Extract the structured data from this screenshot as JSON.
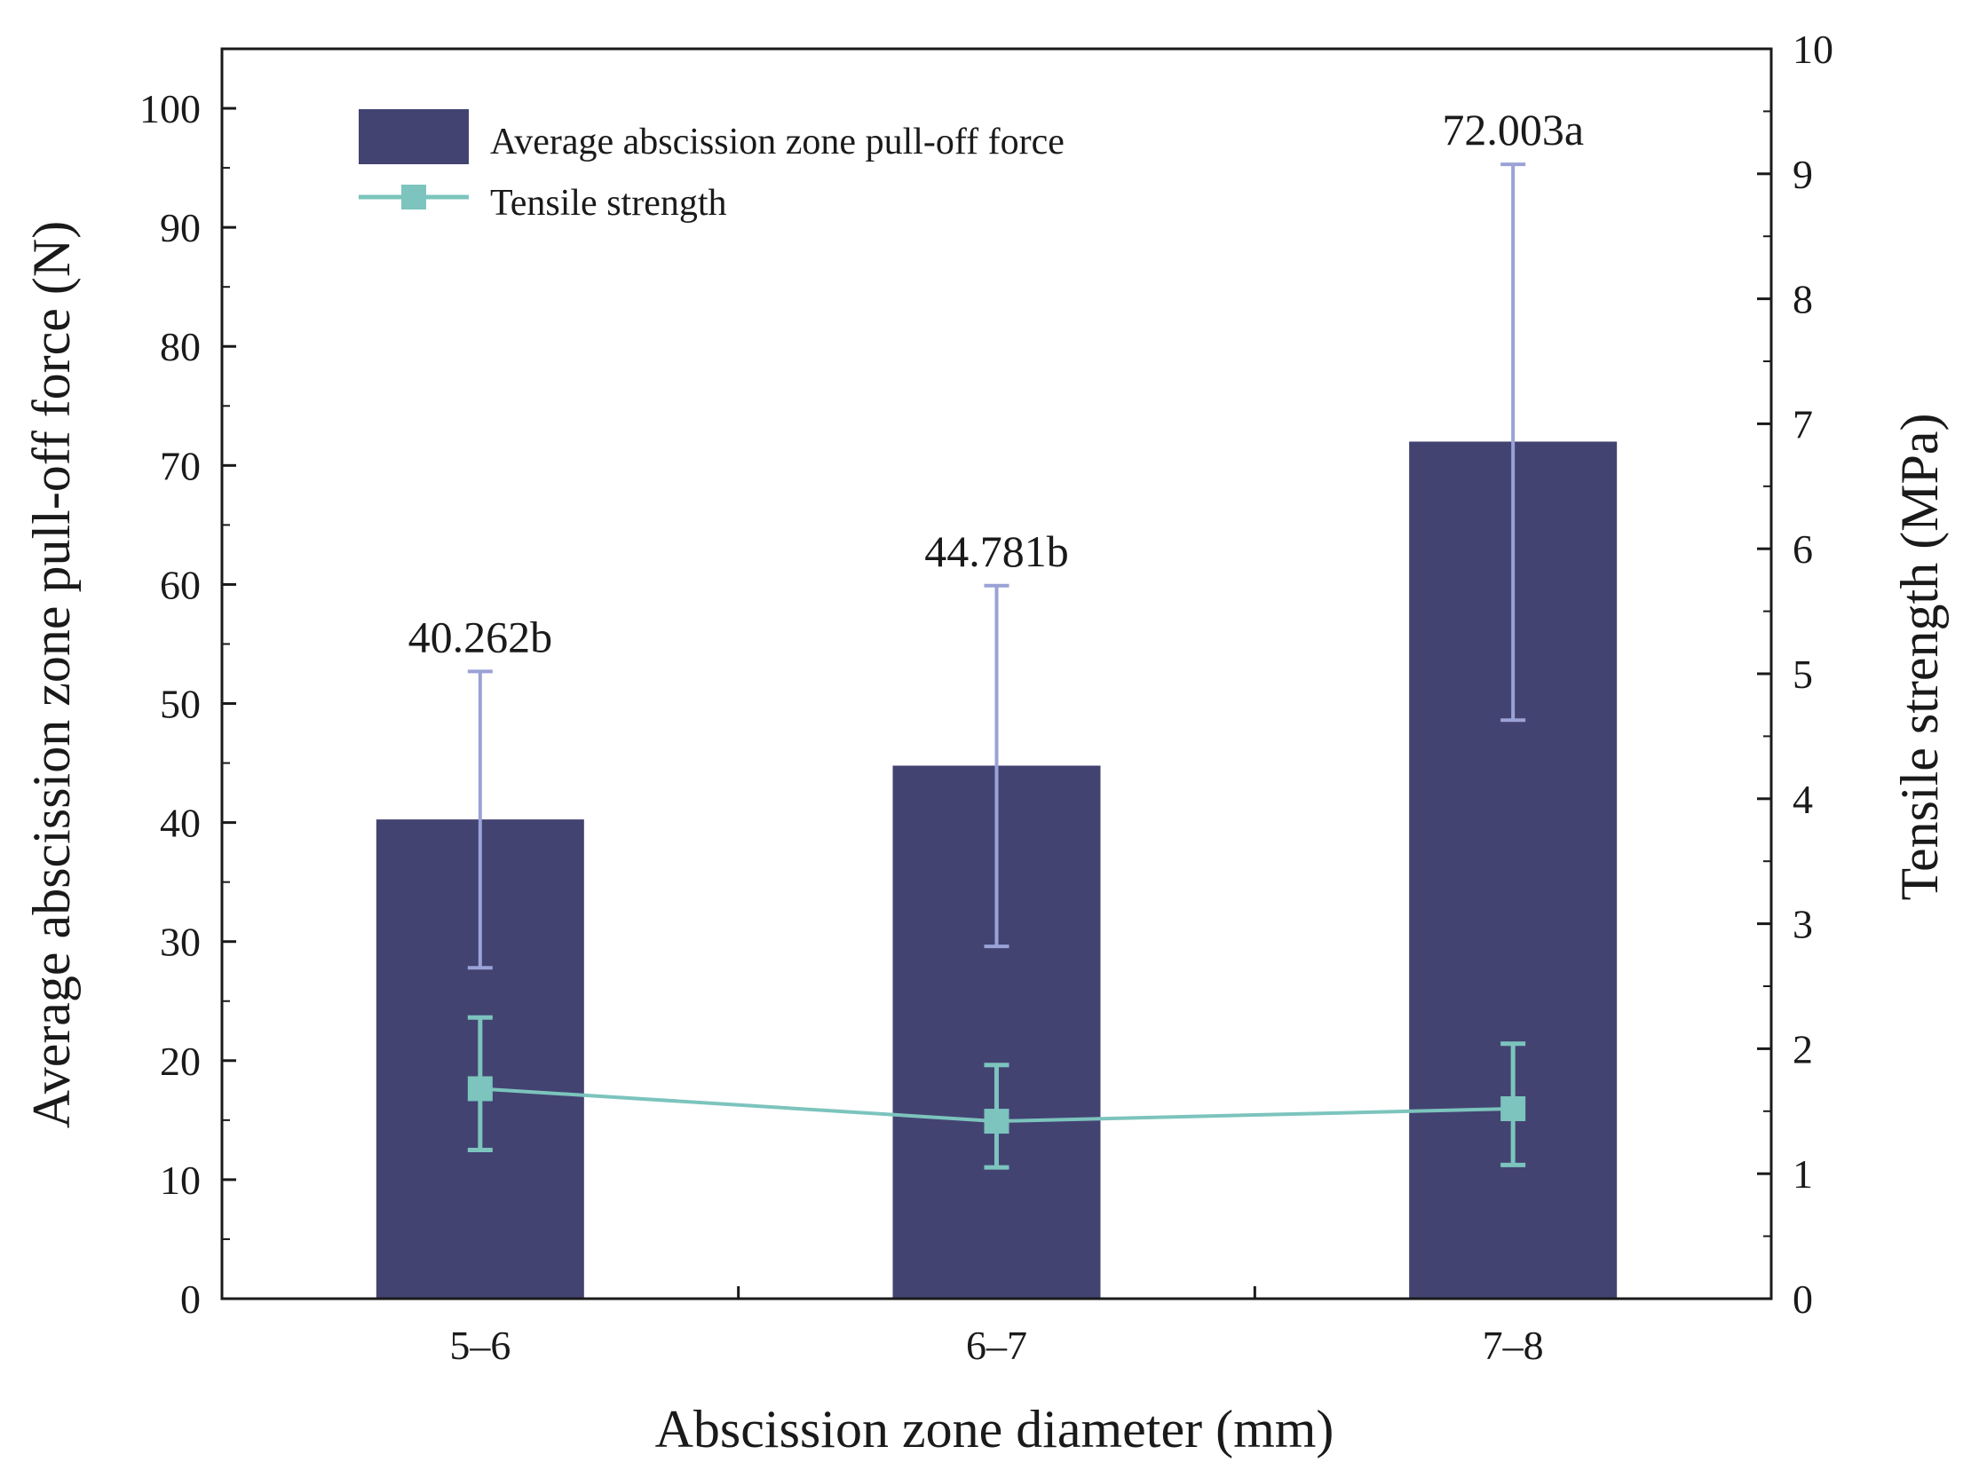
{
  "chart_data": {
    "type": "bar",
    "categories": [
      "5–6",
      "6–7",
      "7–8"
    ],
    "series": [
      {
        "name": "Average abscission zone pull-off force",
        "kind": "bar",
        "axis": "left",
        "values": [
          40.262,
          44.781,
          72.003
        ],
        "error_low": [
          27.8,
          29.6,
          48.6
        ],
        "error_high": [
          52.7,
          59.9,
          95.3
        ],
        "labels": [
          "40.262b",
          "44.781b",
          "72.003a"
        ],
        "color": "#434372",
        "error_color": "#9aa2d6"
      },
      {
        "name": "Tensile strength",
        "kind": "line",
        "axis": "right",
        "values": [
          1.68,
          1.42,
          1.52
        ],
        "error_low": [
          1.19,
          1.05,
          1.07
        ],
        "error_high": [
          2.25,
          1.87,
          2.04
        ],
        "color": "#7cc4bd"
      }
    ],
    "xlabel": "Abscission zone diameter (mm)",
    "ylabel": "Average abscission zone pull-off force (N)",
    "ylabel_right": "Tensile strength (MPa)",
    "ylim": [
      0,
      105
    ],
    "ylim_right": [
      0,
      10
    ],
    "yticks": [
      0,
      10,
      20,
      30,
      40,
      50,
      60,
      70,
      80,
      90,
      100
    ],
    "yticks_right": [
      0,
      1,
      2,
      3,
      4,
      5,
      6,
      7,
      8,
      9,
      10
    ],
    "legend": {
      "position": "top-left",
      "entries": [
        "Average abscission zone pull-off force",
        "Tensile strength"
      ]
    },
    "grid": false
  }
}
